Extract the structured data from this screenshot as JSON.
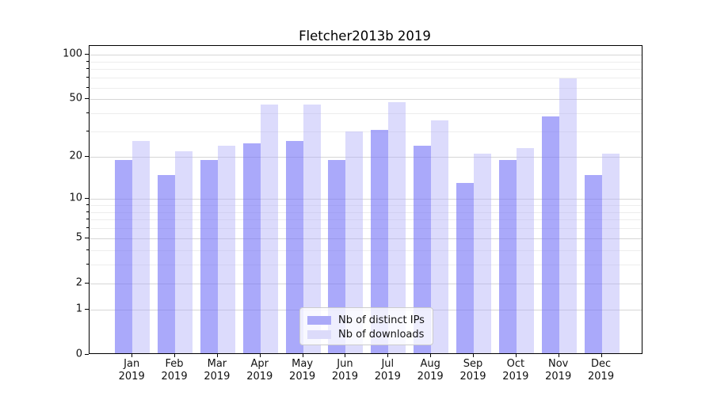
{
  "title": "Fletcher2013b 2019",
  "legend": {
    "items": [
      {
        "label": "Nb of distinct IPs",
        "color": "#abaaf8"
      },
      {
        "label": "Nb of downloads",
        "color": "#dcdbfa"
      }
    ]
  },
  "x_axis": {
    "months": [
      "Jan",
      "Feb",
      "Mar",
      "Apr",
      "May",
      "Jun",
      "Jul",
      "Aug",
      "Sep",
      "Oct",
      "Nov",
      "Dec"
    ],
    "year": "2019"
  },
  "y_axis": {
    "ticks": [
      0,
      1,
      2,
      5,
      10,
      20,
      50,
      100
    ],
    "minor_gridlines": [
      3,
      4,
      6,
      7,
      8,
      9,
      30,
      40,
      60,
      70,
      80,
      90
    ]
  },
  "colors": {
    "bar_distinct_ips_fill": "rgba(113,112,246,0.6)",
    "bar_downloads_fill": "rgba(177,176,249,0.45)",
    "swatch_distinct_ips": "#abaaf8",
    "swatch_downloads": "#dcdbfa",
    "grid_major": "#d6d6d6",
    "grid_minor": "#ededed",
    "spine": "#000000"
  },
  "chart_data": {
    "type": "bar",
    "title": "Fletcher2013b 2019",
    "categories": [
      "Jan 2019",
      "Feb 2019",
      "Mar 2019",
      "Apr 2019",
      "May 2019",
      "Jun 2019",
      "Jul 2019",
      "Aug 2019",
      "Sep 2019",
      "Oct 2019",
      "Nov 2019",
      "Dec 2019"
    ],
    "series": [
      {
        "name": "Nb of distinct IPs",
        "values": [
          19,
          15,
          19,
          25,
          26,
          19,
          31,
          24,
          13,
          19,
          38,
          15
        ]
      },
      {
        "name": "Nb of downloads",
        "values": [
          26,
          22,
          24,
          46,
          46,
          30,
          48,
          36,
          21,
          23,
          69,
          21
        ]
      }
    ],
    "xlabel": "",
    "ylabel": "",
    "yscale": "log1p",
    "ylim": [
      0,
      117
    ],
    "yticks": [
      0,
      1,
      2,
      5,
      10,
      20,
      50,
      100
    ],
    "grid": "both",
    "legend_position": "lower center"
  }
}
